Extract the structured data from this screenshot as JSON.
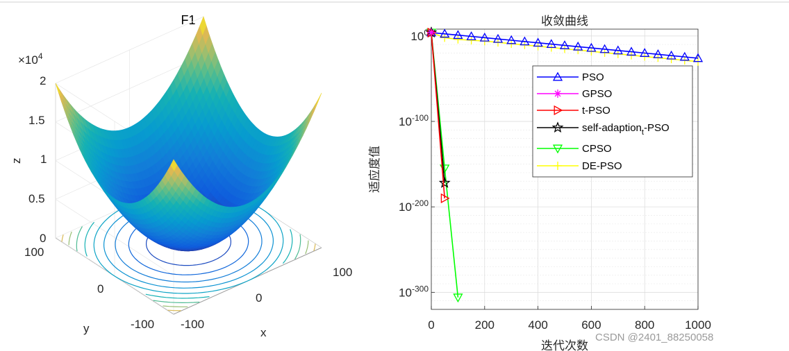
{
  "colors": {
    "blue": "#0000ff",
    "magenta": "#ff00ff",
    "red": "#ff0000",
    "black": "#000000",
    "green": "#00ff00",
    "yellow": "#ffff00"
  },
  "watermark": "CSDN @2401_88250058",
  "chart_data": [
    {
      "type": "surface",
      "title": "F1",
      "exponent_label": "×10",
      "exponent_power": "4",
      "xlabel": "x",
      "ylabel": "y",
      "zlabel": "z",
      "x_ticks": [
        "-100",
        "0",
        "100"
      ],
      "y_ticks": [
        "-100",
        "0",
        "100"
      ],
      "z_ticks": [
        "0",
        "0.5",
        "1",
        "1.5",
        "2"
      ],
      "xlim": [
        -100,
        100
      ],
      "ylim": [
        -100,
        100
      ],
      "zlim": [
        0,
        20000
      ],
      "function": "z = x^2 + y^2 (sphere)",
      "contour_levels": [
        2000,
        4000,
        6000,
        8000,
        10000,
        12000,
        14000,
        16000,
        18000
      ]
    },
    {
      "type": "line",
      "title": "收敛曲线",
      "xlabel": "迭代次数",
      "ylabel": "适应度值",
      "yscale": "log",
      "xlim": [
        0,
        1000
      ],
      "ylim_exponent": [
        -320,
        8
      ],
      "x_ticks": [
        "0",
        "200",
        "400",
        "600",
        "800",
        "1000"
      ],
      "y_tick_base": "10",
      "y_tick_powers": [
        "0",
        "-100",
        "-200",
        "-300"
      ],
      "y_tick_values": [
        0,
        -100,
        -200,
        -300
      ],
      "series": [
        {
          "name": "PSO",
          "color": "#0000ff",
          "marker": "triangle-up",
          "x": [
            0,
            50,
            100,
            150,
            200,
            250,
            300,
            350,
            400,
            450,
            500,
            550,
            600,
            650,
            700,
            750,
            800,
            850,
            900,
            950,
            1000
          ],
          "log10_y": [
            4,
            2.5,
            1,
            -0.5,
            -2,
            -3.5,
            -5,
            -6.5,
            -8,
            -9.5,
            -11,
            -12.5,
            -14,
            -15.5,
            -17,
            -18.5,
            -20,
            -21.5,
            -23,
            -24.5,
            -26
          ]
        },
        {
          "name": "GPSO",
          "color": "#ff00ff",
          "marker": "asterisk",
          "x": [
            0
          ],
          "log10_y": [
            4
          ]
        },
        {
          "name": "t-PSO",
          "color": "#ff0000",
          "marker": "triangle-right",
          "x": [
            0,
            50
          ],
          "log10_y": [
            4,
            -190
          ]
        },
        {
          "name": "self-adaption",
          "subscript": "t",
          "suffix": "-PSO",
          "color": "#000000",
          "marker": "pentagram",
          "x": [
            0,
            50
          ],
          "log10_y": [
            4,
            -172
          ]
        },
        {
          "name": "CPSO",
          "color": "#00ff00",
          "marker": "triangle-down",
          "x": [
            0,
            50,
            100
          ],
          "log10_y": [
            4,
            -155,
            -306
          ]
        },
        {
          "name": "DE-PSO",
          "color": "#ffff00",
          "marker": "plus",
          "x": [
            0,
            50,
            100,
            150,
            200,
            250,
            300,
            350,
            400,
            450,
            500,
            550,
            600,
            650,
            700,
            750,
            800,
            850,
            900,
            950,
            1000
          ],
          "log10_y": [
            4,
            -2,
            -4,
            -5,
            -6,
            -7.5,
            -9,
            -10.5,
            -12,
            -13.5,
            -15,
            -16.5,
            -18,
            -19.5,
            -21,
            -22.5,
            -24,
            -25.5,
            -27,
            -28.5,
            -30
          ]
        }
      ]
    }
  ]
}
